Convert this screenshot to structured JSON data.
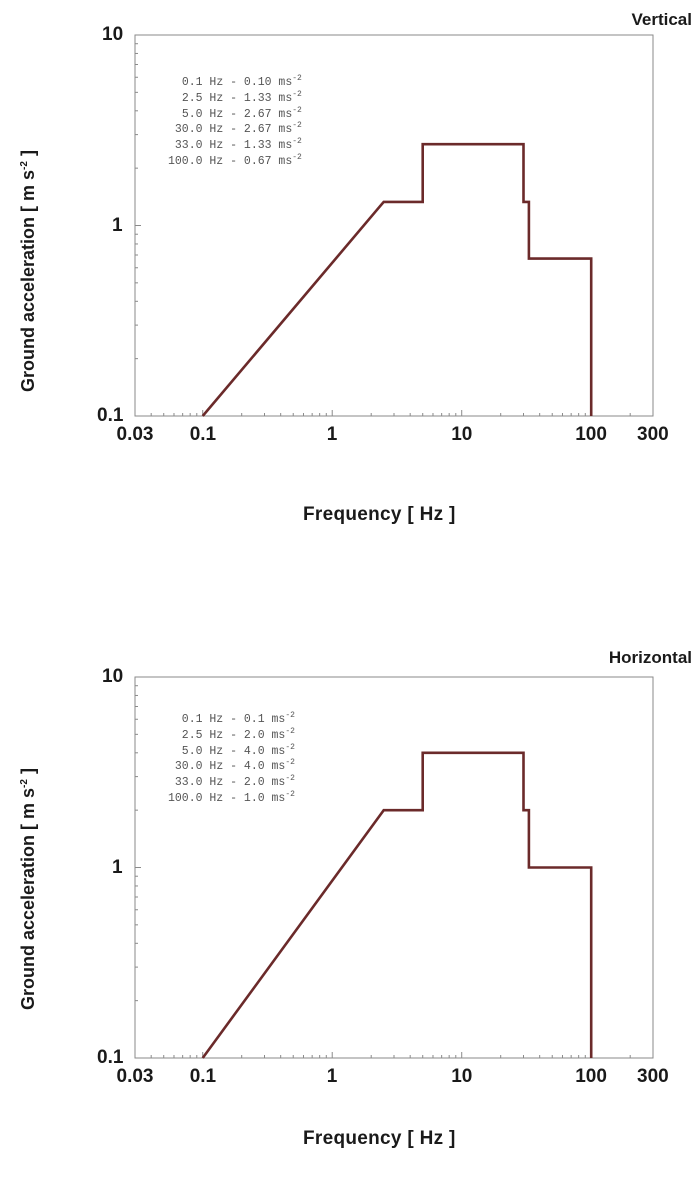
{
  "chart_data": [
    {
      "type": "line",
      "title": "Vertical",
      "xlabel": "Frequency  [ Hz ]",
      "ylabel": "Ground acceleration  [ m s",
      "ylabel_sup": "-2",
      "ylabel_end": " ]",
      "x_scale": "log",
      "y_scale": "log",
      "xlim": [
        0.03,
        300
      ],
      "ylim": [
        0.1,
        10
      ],
      "x_ticks": [
        "0.03",
        "0.1",
        "1",
        "10",
        "100",
        "300"
      ],
      "y_ticks": [
        "10",
        "1",
        "0.1"
      ],
      "legend_entries": [
        {
          "text": "0.1 Hz - 0.10 ms",
          "sup": "-2"
        },
        {
          "text": "2.5 Hz - 1.33 ms",
          "sup": "-2"
        },
        {
          "text": "5.0 Hz - 2.67 ms",
          "sup": "-2"
        },
        {
          "text": "30.0 Hz - 2.67 ms",
          "sup": "-2"
        },
        {
          "text": "33.0 Hz - 1.33 ms",
          "sup": "-2"
        },
        {
          "text": "100.0 Hz - 0.67 ms",
          "sup": "-2"
        }
      ],
      "series": [
        {
          "x": [
            0.1,
            2.5,
            5.0,
            5.0,
            30.0,
            30.0,
            33.0,
            33.0,
            100.0,
            100.0
          ],
          "y": [
            0.1,
            1.33,
            1.33,
            2.67,
            2.67,
            1.33,
            1.33,
            0.67,
            0.67,
            0.1
          ]
        }
      ],
      "line_color": "#6b2a2a"
    },
    {
      "type": "line",
      "title": "Horizontal",
      "xlabel": "Frequency  [ Hz ]",
      "ylabel": "Ground acceleration  [ m s",
      "ylabel_sup": "-2",
      "ylabel_end": " ]",
      "x_scale": "log",
      "y_scale": "log",
      "xlim": [
        0.03,
        300
      ],
      "ylim": [
        0.1,
        10
      ],
      "x_ticks": [
        "0.03",
        "0.1",
        "1",
        "10",
        "100",
        "300"
      ],
      "y_ticks": [
        "10",
        "1",
        "0.1"
      ],
      "legend_entries": [
        {
          "text": "0.1 Hz - 0.1 ms",
          "sup": "-2"
        },
        {
          "text": "2.5 Hz - 2.0 ms",
          "sup": "-2"
        },
        {
          "text": "5.0 Hz - 4.0 ms",
          "sup": "-2"
        },
        {
          "text": "30.0 Hz - 4.0 ms",
          "sup": "-2"
        },
        {
          "text": "33.0 Hz - 2.0 ms",
          "sup": "-2"
        },
        {
          "text": "100.0 Hz - 1.0 ms",
          "sup": "-2"
        }
      ],
      "series": [
        {
          "x": [
            0.1,
            2.5,
            5.0,
            5.0,
            30.0,
            30.0,
            33.0,
            33.0,
            100.0,
            100.0
          ],
          "y": [
            0.1,
            2.0,
            2.0,
            4.0,
            4.0,
            2.0,
            2.0,
            1.0,
            1.0,
            0.1
          ]
        }
      ],
      "line_color": "#6b2a2a"
    }
  ]
}
